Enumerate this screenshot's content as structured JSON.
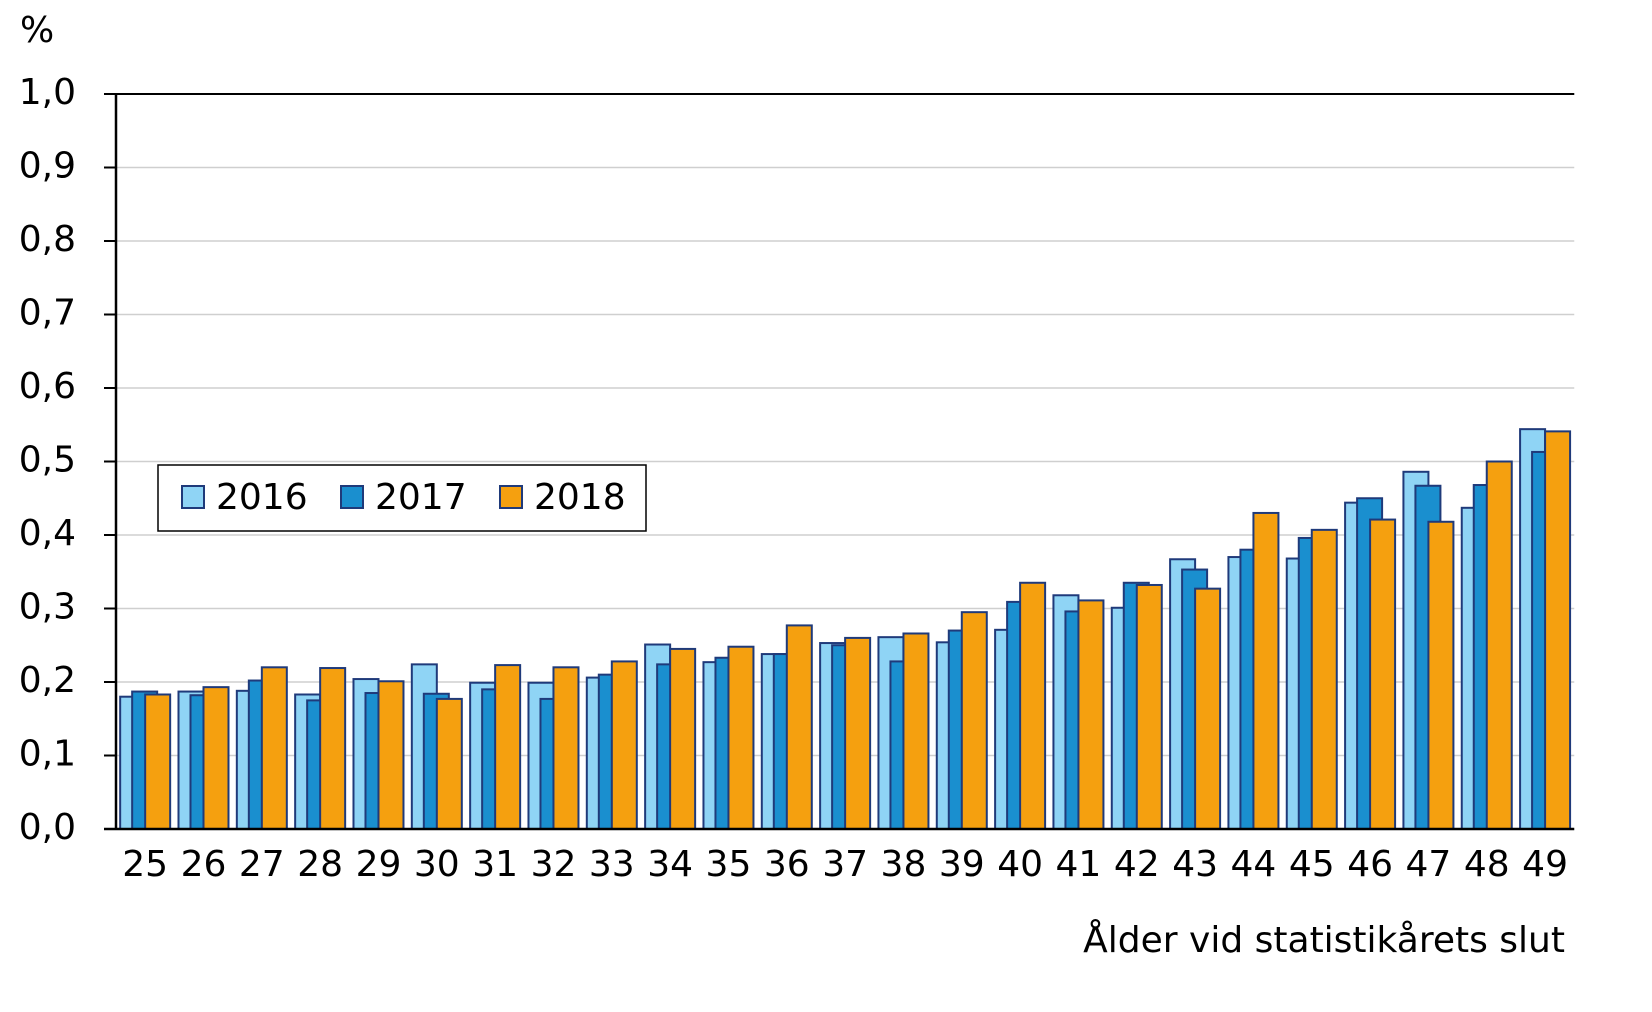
{
  "chart_data": {
    "type": "bar",
    "y_label": "%",
    "x_label": "Ålder vid statistikårets slut",
    "categories": [
      "25",
      "26",
      "27",
      "28",
      "29",
      "30",
      "31",
      "32",
      "33",
      "34",
      "35",
      "36",
      "37",
      "38",
      "39",
      "40",
      "41",
      "42",
      "43",
      "44",
      "45",
      "46",
      "47",
      "48",
      "49"
    ],
    "series": [
      {
        "name": "2016",
        "color": "#8fd4f5",
        "values": [
          0.18,
          0.187,
          0.188,
          0.183,
          0.204,
          0.224,
          0.199,
          0.199,
          0.206,
          0.251,
          0.227,
          0.238,
          0.253,
          0.261,
          0.254,
          0.271,
          0.318,
          0.301,
          0.367,
          0.37,
          0.368,
          0.444,
          0.486,
          0.437,
          0.544
        ]
      },
      {
        "name": "2017",
        "color": "#1a8fcf",
        "values": [
          0.187,
          0.182,
          0.202,
          0.175,
          0.185,
          0.184,
          0.19,
          0.177,
          0.21,
          0.224,
          0.233,
          0.238,
          0.25,
          0.228,
          0.27,
          0.309,
          0.296,
          0.335,
          0.353,
          0.38,
          0.396,
          0.45,
          0.467,
          0.468,
          0.513
        ]
      },
      {
        "name": "2018",
        "color": "#f5a00f",
        "values": [
          0.183,
          0.193,
          0.22,
          0.219,
          0.201,
          0.177,
          0.223,
          0.22,
          0.228,
          0.245,
          0.248,
          0.277,
          0.26,
          0.266,
          0.295,
          0.335,
          0.311,
          0.332,
          0.327,
          0.43,
          0.407,
          0.421,
          0.418,
          0.5,
          0.541
        ]
      }
    ],
    "ylim": [
      0,
      1
    ],
    "yticks": [
      {
        "value": 0,
        "label": "0,0"
      },
      {
        "value": 0.1,
        "label": "0,1"
      },
      {
        "value": 0.2,
        "label": "0,2"
      },
      {
        "value": 0.3,
        "label": "0,3"
      },
      {
        "value": 0.4,
        "label": "0,4"
      },
      {
        "value": 0.5,
        "label": "0,5"
      },
      {
        "value": 0.6,
        "label": "0,6"
      },
      {
        "value": 0.7,
        "label": "0,7"
      },
      {
        "value": 0.8,
        "label": "0,8"
      },
      {
        "value": 0.9,
        "label": "0,9"
      },
      {
        "value": 1,
        "label": "1,0"
      }
    ],
    "grid": true,
    "legend": "left"
  }
}
